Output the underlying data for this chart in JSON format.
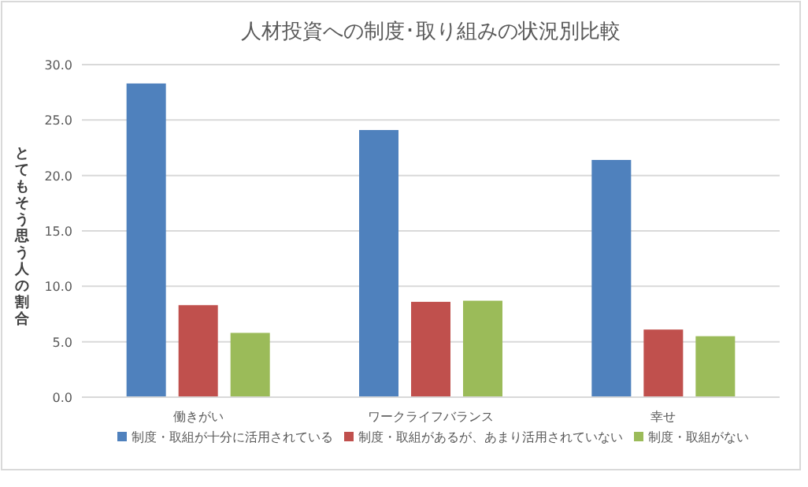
{
  "chart_data": {
    "type": "bar",
    "title": "人材投資への制度･取り組みの状況別比較",
    "ylabel": "とてもそう思う人の割合",
    "categories": [
      "働きがい",
      "ワークライフバランス",
      "幸せ"
    ],
    "series": [
      {
        "name": "制度・取組が十分に活用されている",
        "color": "#4f81bd",
        "values": [
          28.3,
          24.1,
          21.4
        ]
      },
      {
        "name": "制度・取組があるが、あまり活用されていない",
        "color": "#c0504d",
        "values": [
          8.3,
          8.6,
          6.1
        ]
      },
      {
        "name": "制度・取組がない",
        "color": "#9bbb59",
        "values": [
          5.8,
          8.7,
          5.5
        ]
      }
    ],
    "ylim": [
      0,
      30
    ],
    "yticks": [
      {
        "value": 0,
        "label": "0.0"
      },
      {
        "value": 5,
        "label": "5.0"
      },
      {
        "value": 10,
        "label": "10.0"
      },
      {
        "value": 15,
        "label": "15.0"
      },
      {
        "value": 20,
        "label": "20.0"
      },
      {
        "value": 25,
        "label": "25.0"
      },
      {
        "value": 30,
        "label": "30.0"
      }
    ],
    "grid": "y",
    "legend": "bottom"
  }
}
